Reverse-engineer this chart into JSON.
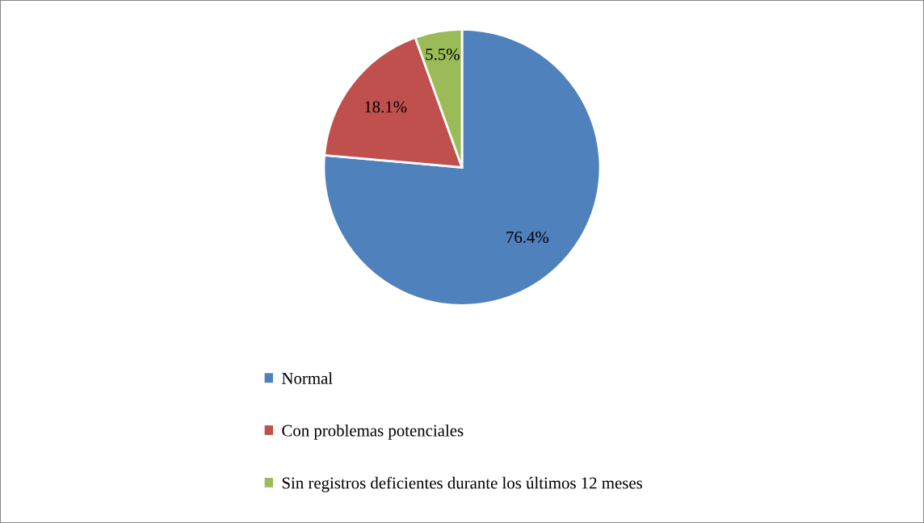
{
  "chart_data": {
    "type": "pie",
    "categories": [
      "Normal",
      "Con problemas potenciales",
      "Sin registros deficientes durante los últimos 12 meses"
    ],
    "values": [
      76.4,
      18.1,
      5.5
    ],
    "colors": [
      "#4f81bd",
      "#c0504d",
      "#9bbb59"
    ],
    "value_labels": [
      "76.4%",
      "18.1%",
      "5.5%"
    ],
    "legend": "bottom left"
  }
}
